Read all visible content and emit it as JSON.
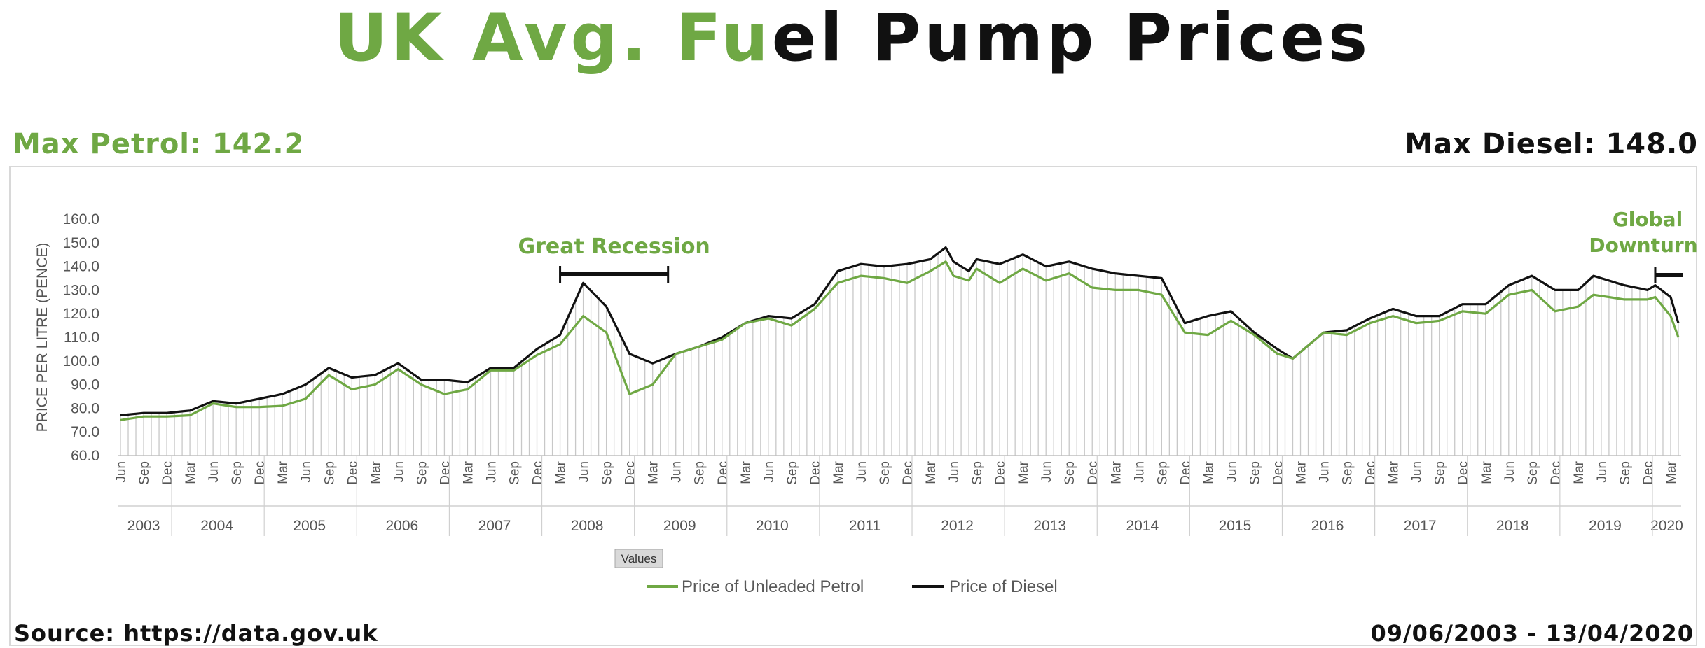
{
  "title": {
    "part1": "UK Avg. Fu",
    "part2": "el Pump Prices"
  },
  "max_petrol": "Max Petrol: 142.2",
  "max_diesel": "Max Diesel: 148.0",
  "source": "Source: https://data.gov.uk",
  "date_range": "09/06/2003 - 13/04/2020",
  "colors": {
    "petrol": "#6fa844",
    "diesel": "#111111",
    "grid": "#c8c8c8"
  },
  "chart_data": {
    "type": "line",
    "ylabel": "PRICE PER LITRE (PENCE)",
    "xlabel": "",
    "ylim": [
      60,
      160
    ],
    "yticks": [
      "160.0",
      "150.0",
      "140.0",
      "130.0",
      "120.0",
      "110.0",
      "100.0",
      "90.0",
      "80.0",
      "70.0",
      "60.0"
    ],
    "x_axis_button": "Values",
    "month_ticks": [
      "Jun",
      "Sep",
      "Dec",
      "Mar",
      "Jun",
      "Sep",
      "Dec",
      "Mar",
      "Jun",
      "Sep",
      "Dec",
      "Mar",
      "Jun",
      "Sep",
      "Dec",
      "Mar",
      "Jun",
      "Sep",
      "Dec",
      "Mar",
      "Jun",
      "Sep",
      "Dec",
      "Mar",
      "Jun",
      "Sep",
      "Dec",
      "Mar",
      "Jun",
      "Sep",
      "Dec",
      "Mar",
      "Jun",
      "Sep",
      "Dec",
      "Mar",
      "Jun",
      "Sep",
      "Dec",
      "Mar",
      "Jun",
      "Sep",
      "Dec",
      "Mar",
      "Jun",
      "Sep",
      "Dec",
      "Mar",
      "Jun",
      "Sep",
      "Dec",
      "Mar",
      "Jun",
      "Sep",
      "Dec",
      "Mar",
      "Jun",
      "Sep",
      "Dec",
      "Mar",
      "Jun",
      "Sep",
      "Dec",
      "Mar",
      "Jun",
      "Sep",
      "Dec",
      "Mar"
    ],
    "years": [
      "2003",
      "2004",
      "2005",
      "2006",
      "2007",
      "2008",
      "2009",
      "2010",
      "2011",
      "2012",
      "2013",
      "2014",
      "2015",
      "2016",
      "2017",
      "2018",
      "2019",
      "2020"
    ],
    "annotations": [
      {
        "label": "Great Recession",
        "from": "2008-03",
        "to": "2009-05"
      },
      {
        "label": "Global Downturn",
        "from": "2020-01",
        "to": "2020-04"
      }
    ],
    "legend": {
      "position": "bottom",
      "entries": [
        "Price of Unleaded Petrol",
        "Price of Diesel"
      ]
    },
    "series": [
      {
        "name": "Price of Unleaded Petrol",
        "points": [
          [
            "2003-06",
            75
          ],
          [
            "2003-09",
            76.5
          ],
          [
            "2003-12",
            76.5
          ],
          [
            "2004-03",
            77
          ],
          [
            "2004-06",
            82
          ],
          [
            "2004-09",
            80.5
          ],
          [
            "2004-12",
            80.5
          ],
          [
            "2005-03",
            81
          ],
          [
            "2005-06",
            84
          ],
          [
            "2005-09",
            94
          ],
          [
            "2005-12",
            88
          ],
          [
            "2006-03",
            90
          ],
          [
            "2006-06",
            96.5
          ],
          [
            "2006-09",
            90
          ],
          [
            "2006-12",
            86
          ],
          [
            "2007-03",
            88
          ],
          [
            "2007-06",
            96
          ],
          [
            "2007-09",
            96
          ],
          [
            "2007-12",
            102.5
          ],
          [
            "2008-03",
            107
          ],
          [
            "2008-06",
            119
          ],
          [
            "2008-09",
            112
          ],
          [
            "2008-12",
            86
          ],
          [
            "2009-03",
            90
          ],
          [
            "2009-06",
            103
          ],
          [
            "2009-09",
            106
          ],
          [
            "2009-12",
            109
          ],
          [
            "2010-03",
            116
          ],
          [
            "2010-06",
            118
          ],
          [
            "2010-09",
            115
          ],
          [
            "2010-12",
            122
          ],
          [
            "2011-03",
            133
          ],
          [
            "2011-06",
            136
          ],
          [
            "2011-09",
            135
          ],
          [
            "2011-12",
            133
          ],
          [
            "2012-03",
            138
          ],
          [
            "2012-05",
            142
          ],
          [
            "2012-06",
            136
          ],
          [
            "2012-08",
            134
          ],
          [
            "2012-09",
            139
          ],
          [
            "2012-12",
            133
          ],
          [
            "2013-03",
            139
          ],
          [
            "2013-06",
            134
          ],
          [
            "2013-09",
            137
          ],
          [
            "2013-12",
            131
          ],
          [
            "2014-03",
            130
          ],
          [
            "2014-06",
            130
          ],
          [
            "2014-09",
            128
          ],
          [
            "2014-12",
            112
          ],
          [
            "2015-03",
            111
          ],
          [
            "2015-06",
            117
          ],
          [
            "2015-09",
            111
          ],
          [
            "2015-12",
            103
          ],
          [
            "2016-02",
            101
          ],
          [
            "2016-06",
            112
          ],
          [
            "2016-09",
            111
          ],
          [
            "2016-12",
            116
          ],
          [
            "2017-03",
            119
          ],
          [
            "2017-06",
            116
          ],
          [
            "2017-09",
            117
          ],
          [
            "2017-12",
            121
          ],
          [
            "2018-03",
            120
          ],
          [
            "2018-06",
            128
          ],
          [
            "2018-09",
            130
          ],
          [
            "2018-12",
            121
          ],
          [
            "2019-03",
            123
          ],
          [
            "2019-05",
            128
          ],
          [
            "2019-09",
            126
          ],
          [
            "2019-12",
            126
          ],
          [
            "2020-01",
            127
          ],
          [
            "2020-03",
            119
          ],
          [
            "2020-04",
            110
          ]
        ]
      },
      {
        "name": "Price of Diesel",
        "points": [
          [
            "2003-06",
            77
          ],
          [
            "2003-09",
            78
          ],
          [
            "2003-12",
            78
          ],
          [
            "2004-03",
            79
          ],
          [
            "2004-06",
            83
          ],
          [
            "2004-09",
            82
          ],
          [
            "2004-12",
            84
          ],
          [
            "2005-03",
            86
          ],
          [
            "2005-06",
            90
          ],
          [
            "2005-09",
            97
          ],
          [
            "2005-12",
            93
          ],
          [
            "2006-03",
            94
          ],
          [
            "2006-06",
            99
          ],
          [
            "2006-09",
            92
          ],
          [
            "2006-12",
            92
          ],
          [
            "2007-03",
            91
          ],
          [
            "2007-06",
            97
          ],
          [
            "2007-09",
            97
          ],
          [
            "2007-12",
            105
          ],
          [
            "2008-03",
            111
          ],
          [
            "2008-06",
            133
          ],
          [
            "2008-09",
            123
          ],
          [
            "2008-12",
            103
          ],
          [
            "2009-03",
            99
          ],
          [
            "2009-06",
            103
          ],
          [
            "2009-09",
            106
          ],
          [
            "2009-12",
            110
          ],
          [
            "2010-03",
            116
          ],
          [
            "2010-06",
            119
          ],
          [
            "2010-09",
            118
          ],
          [
            "2010-12",
            124
          ],
          [
            "2011-03",
            138
          ],
          [
            "2011-06",
            141
          ],
          [
            "2011-09",
            140
          ],
          [
            "2011-12",
            141
          ],
          [
            "2012-03",
            143
          ],
          [
            "2012-05",
            148
          ],
          [
            "2012-06",
            142
          ],
          [
            "2012-08",
            138
          ],
          [
            "2012-09",
            143
          ],
          [
            "2012-12",
            141
          ],
          [
            "2013-03",
            145
          ],
          [
            "2013-06",
            140
          ],
          [
            "2013-09",
            142
          ],
          [
            "2013-12",
            139
          ],
          [
            "2014-03",
            137
          ],
          [
            "2014-06",
            136
          ],
          [
            "2014-09",
            135
          ],
          [
            "2014-12",
            116
          ],
          [
            "2015-03",
            119
          ],
          [
            "2015-06",
            121
          ],
          [
            "2015-09",
            112
          ],
          [
            "2015-12",
            105
          ],
          [
            "2016-02",
            101
          ],
          [
            "2016-06",
            112
          ],
          [
            "2016-09",
            113
          ],
          [
            "2016-12",
            118
          ],
          [
            "2017-03",
            122
          ],
          [
            "2017-06",
            119
          ],
          [
            "2017-09",
            119
          ],
          [
            "2017-12",
            124
          ],
          [
            "2018-03",
            124
          ],
          [
            "2018-06",
            132
          ],
          [
            "2018-09",
            136
          ],
          [
            "2018-12",
            130
          ],
          [
            "2019-03",
            130
          ],
          [
            "2019-05",
            136
          ],
          [
            "2019-09",
            132
          ],
          [
            "2019-12",
            130
          ],
          [
            "2020-01",
            132
          ],
          [
            "2020-03",
            127
          ],
          [
            "2020-04",
            116
          ]
        ]
      }
    ]
  }
}
